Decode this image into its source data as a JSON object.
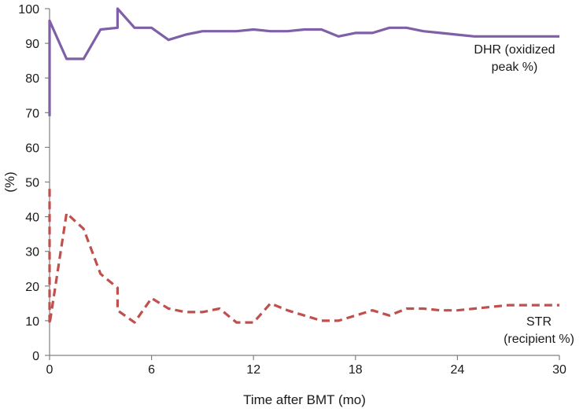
{
  "chart_data": {
    "type": "line",
    "xlabel": "Time after BMT (mo)",
    "ylabel": "(%)",
    "xlim": [
      0,
      30
    ],
    "ylim": [
      0,
      100
    ],
    "x_ticks": [
      0,
      6,
      12,
      18,
      24,
      30
    ],
    "y_ticks": [
      0,
      10,
      20,
      30,
      40,
      50,
      60,
      70,
      80,
      90,
      100
    ],
    "grid": false,
    "legend": "none",
    "series": [
      {
        "label_lines": [
          "DHR (oxidized",
          "peak %)"
        ],
        "color": "#7f5fa6",
        "dash": "solid",
        "x": [
          0,
          0,
          1,
          2,
          3,
          4,
          4,
          5,
          6,
          7,
          8,
          9,
          10,
          11,
          12,
          13,
          14,
          15,
          16,
          17,
          18,
          19,
          20,
          21,
          22,
          23,
          24,
          25,
          26,
          27,
          28,
          29,
          30
        ],
        "y": [
          69,
          96.5,
          85.5,
          85.5,
          94,
          94.5,
          100,
          94.5,
          94.5,
          91,
          92.5,
          93.5,
          93.5,
          93.5,
          94,
          93.5,
          93.5,
          94,
          94,
          92,
          93,
          93,
          94.5,
          94.5,
          93.5,
          93,
          92.5,
          92,
          92,
          92,
          92,
          92,
          92
        ]
      },
      {
        "label_lines": [
          "STR",
          "(recipient %)"
        ],
        "color": "#c0504d",
        "dash": "dashed",
        "x": [
          0,
          0,
          1,
          2,
          3,
          4,
          4,
          5,
          6,
          7,
          8,
          9,
          10,
          11,
          12,
          13,
          14,
          15,
          16,
          17,
          18,
          19,
          20,
          21,
          22,
          23,
          24,
          25,
          26,
          27,
          28,
          29,
          30
        ],
        "y": [
          48,
          9,
          41,
          36.5,
          23.5,
          19.5,
          13,
          9.5,
          16.5,
          13.5,
          12.5,
          12.5,
          13.5,
          9.5,
          9.5,
          15,
          13,
          11.5,
          10,
          10,
          11.5,
          13,
          11.5,
          13.5,
          13.5,
          13,
          13,
          13.5,
          14,
          14.5,
          14.5,
          14.5,
          14.5
        ]
      }
    ]
  }
}
